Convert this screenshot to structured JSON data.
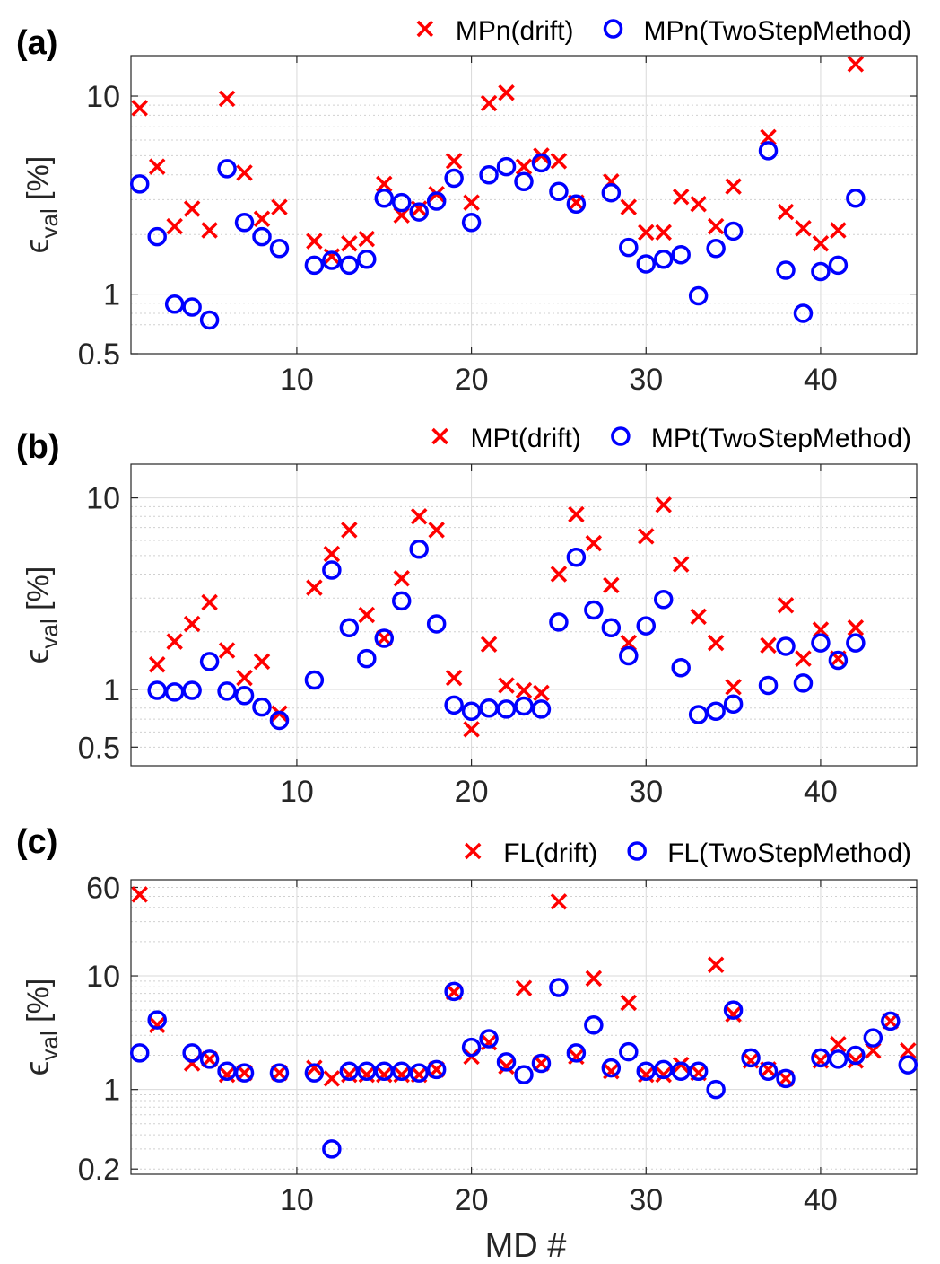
{
  "colors": {
    "drift": "#ff0000",
    "twostep": "#0000ff"
  },
  "xlabel": "MD #",
  "chart_data": [
    {
      "type": "scatter",
      "panel_label": "(a)",
      "ylabel": "ε_val [%]",
      "ylabel_main": "ϵ",
      "ylabel_sub": "val",
      "ylabel_unit": " [%]",
      "yscale": "log",
      "xlim": [
        0.5,
        45.5
      ],
      "ylim": [
        0.5,
        16
      ],
      "xticks": [
        10,
        20,
        30,
        40
      ],
      "xtick_labels": [
        "10",
        "20",
        "30",
        "40"
      ],
      "yticks": [
        0.5,
        1,
        10
      ],
      "ytick_labels": [
        "0.5",
        "1",
        "10"
      ],
      "grid": true,
      "legend": "top-right",
      "series": [
        {
          "name": "MPn(drift)",
          "marker": "x",
          "x": [
            1,
            2,
            3,
            4,
            5,
            6,
            7,
            8,
            9,
            11,
            12,
            13,
            14,
            15,
            16,
            17,
            18,
            19,
            20,
            21,
            22,
            23,
            24,
            25,
            26,
            28,
            29,
            30,
            31,
            32,
            33,
            34,
            35,
            37,
            38,
            39,
            40,
            41,
            42
          ],
          "y": [
            8.7,
            4.4,
            2.2,
            2.7,
            2.1,
            9.7,
            4.1,
            2.4,
            2.75,
            1.85,
            1.55,
            1.8,
            1.9,
            3.6,
            2.5,
            2.7,
            3.2,
            4.7,
            2.9,
            9.2,
            10.4,
            4.4,
            5.0,
            4.7,
            2.9,
            3.7,
            2.75,
            2.05,
            2.05,
            3.1,
            2.85,
            2.2,
            3.5,
            6.2,
            2.6,
            2.15,
            1.8,
            2.1,
            14.5
          ]
        },
        {
          "name": "MPn(TwoStepMethod)",
          "marker": "o",
          "x": [
            1,
            2,
            3,
            4,
            5,
            6,
            7,
            8,
            9,
            11,
            12,
            13,
            14,
            15,
            16,
            17,
            18,
            19,
            20,
            21,
            22,
            23,
            24,
            25,
            26,
            28,
            29,
            30,
            31,
            32,
            33,
            34,
            35,
            37,
            38,
            39,
            40,
            41,
            42
          ],
          "y": [
            3.6,
            1.95,
            0.89,
            0.86,
            0.74,
            4.3,
            2.3,
            1.95,
            1.7,
            1.4,
            1.48,
            1.4,
            1.5,
            3.05,
            2.9,
            2.6,
            2.95,
            3.85,
            2.3,
            4.0,
            4.4,
            3.7,
            4.6,
            3.3,
            2.85,
            3.25,
            1.72,
            1.42,
            1.5,
            1.58,
            0.98,
            1.7,
            2.08,
            5.3,
            1.32,
            0.8,
            1.3,
            1.4,
            3.05
          ]
        }
      ]
    },
    {
      "type": "scatter",
      "panel_label": "(b)",
      "ylabel": "ε_val [%]",
      "ylabel_main": "ϵ",
      "ylabel_sub": "val",
      "ylabel_unit": " [%]",
      "yscale": "log",
      "xlim": [
        0.5,
        45.5
      ],
      "ylim": [
        0.4,
        15
      ],
      "xticks": [
        10,
        20,
        30,
        40
      ],
      "xtick_labels": [
        "10",
        "20",
        "30",
        "40"
      ],
      "yticks": [
        0.5,
        1,
        10
      ],
      "ytick_labels": [
        "0.5",
        "1",
        "10"
      ],
      "grid": true,
      "legend": "top-right",
      "series": [
        {
          "name": "MPt(drift)",
          "marker": "x",
          "x": [
            2,
            3,
            4,
            5,
            6,
            7,
            8,
            9,
            11,
            12,
            13,
            14,
            15,
            16,
            17,
            18,
            19,
            20,
            21,
            22,
            23,
            24,
            25,
            26,
            27,
            28,
            29,
            30,
            31,
            32,
            33,
            34,
            35,
            37,
            38,
            39,
            40,
            41,
            42
          ],
          "y": [
            1.35,
            1.78,
            2.2,
            2.85,
            1.6,
            1.15,
            1.4,
            0.75,
            3.4,
            5.1,
            6.8,
            2.45,
            1.85,
            3.8,
            8.0,
            6.8,
            1.15,
            0.62,
            1.72,
            1.05,
            0.99,
            0.96,
            4.0,
            8.2,
            5.8,
            3.5,
            1.75,
            6.3,
            9.2,
            4.5,
            2.4,
            1.75,
            1.03,
            1.7,
            2.75,
            1.45,
            2.05,
            1.45,
            2.1
          ]
        },
        {
          "name": "MPt(TwoStepMethod)",
          "marker": "o",
          "x": [
            2,
            3,
            4,
            5,
            6,
            7,
            8,
            9,
            11,
            12,
            13,
            14,
            15,
            16,
            17,
            18,
            19,
            20,
            21,
            22,
            23,
            24,
            25,
            26,
            27,
            28,
            29,
            30,
            31,
            32,
            33,
            34,
            35,
            37,
            38,
            39,
            40,
            41,
            42
          ],
          "y": [
            0.99,
            0.97,
            0.99,
            1.4,
            0.98,
            0.93,
            0.81,
            0.69,
            1.12,
            4.2,
            2.1,
            1.45,
            1.85,
            2.9,
            5.4,
            2.2,
            0.83,
            0.77,
            0.8,
            0.79,
            0.82,
            0.79,
            2.25,
            4.9,
            2.6,
            2.1,
            1.5,
            2.15,
            2.95,
            1.3,
            0.74,
            0.77,
            0.84,
            1.05,
            1.68,
            1.08,
            1.75,
            1.42,
            1.75
          ]
        }
      ]
    },
    {
      "type": "scatter",
      "panel_label": "(c)",
      "ylabel": "ε_val [%]",
      "ylabel_main": "ϵ",
      "ylabel_sub": "val",
      "ylabel_unit": " [%]",
      "yscale": "log",
      "xlim": [
        0.5,
        45.5
      ],
      "ylim": [
        0.18,
        70
      ],
      "xticks": [
        10,
        20,
        30,
        40
      ],
      "xtick_labels": [
        "10",
        "20",
        "30",
        "40"
      ],
      "yticks": [
        0.2,
        1,
        10,
        60
      ],
      "ytick_labels": [
        "0.2",
        "1",
        "10",
        "60"
      ],
      "grid": true,
      "legend": "top-right",
      "series": [
        {
          "name": "FL(drift)",
          "marker": "x",
          "x": [
            1,
            2,
            4,
            5,
            6,
            7,
            9,
            11,
            12,
            13,
            14,
            15,
            16,
            17,
            18,
            19,
            20,
            21,
            22,
            23,
            24,
            25,
            26,
            27,
            28,
            29,
            30,
            31,
            32,
            33,
            34,
            35,
            36,
            37,
            38,
            40,
            41,
            42,
            43,
            44,
            45
          ],
          "y": [
            52,
            3.7,
            1.7,
            1.85,
            1.35,
            1.4,
            1.4,
            1.55,
            1.25,
            1.35,
            1.35,
            1.35,
            1.35,
            1.35,
            1.5,
            7.2,
            1.95,
            2.6,
            1.6,
            7.8,
            1.7,
            45,
            1.95,
            9.5,
            1.45,
            5.8,
            1.35,
            1.35,
            1.65,
            1.4,
            12.5,
            4.6,
            1.8,
            1.5,
            1.25,
            1.8,
            2.5,
            1.8,
            2.2,
            4.0,
            2.2
          ]
        },
        {
          "name": "FL(TwoStepMethod)",
          "marker": "o",
          "x": [
            1,
            2,
            4,
            5,
            6,
            7,
            9,
            11,
            12,
            13,
            14,
            15,
            16,
            17,
            18,
            19,
            20,
            21,
            22,
            23,
            24,
            25,
            26,
            27,
            28,
            29,
            30,
            31,
            32,
            33,
            34,
            35,
            36,
            37,
            38,
            40,
            41,
            42,
            43,
            44,
            45
          ],
          "y": [
            2.1,
            4.1,
            2.1,
            1.85,
            1.45,
            1.4,
            1.4,
            1.4,
            0.3,
            1.45,
            1.45,
            1.45,
            1.45,
            1.4,
            1.5,
            7.3,
            2.35,
            2.8,
            1.75,
            1.35,
            1.7,
            7.9,
            2.1,
            3.7,
            1.55,
            2.15,
            1.45,
            1.5,
            1.45,
            1.45,
            1.0,
            5.0,
            1.9,
            1.45,
            1.25,
            1.9,
            1.85,
            2.0,
            2.85,
            4.0,
            1.65
          ]
        }
      ]
    }
  ]
}
